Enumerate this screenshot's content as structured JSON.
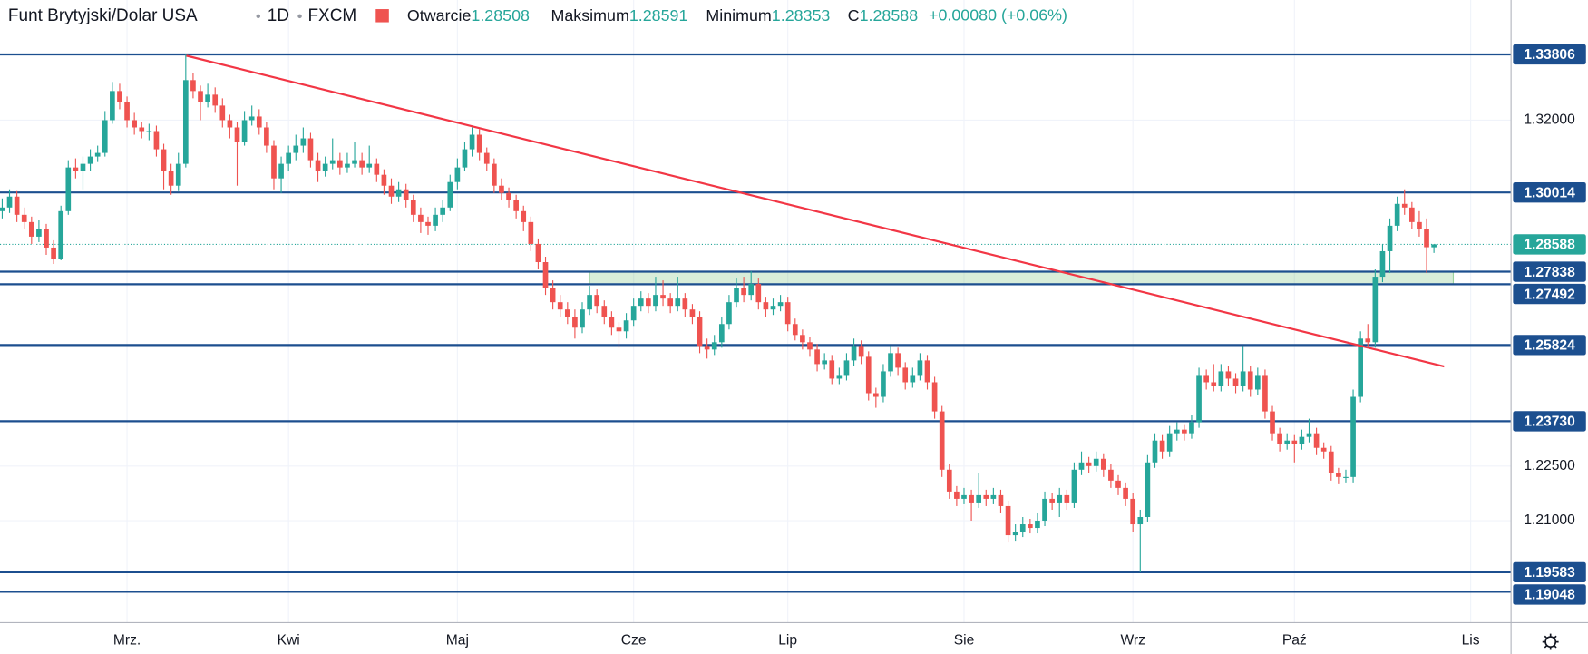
{
  "chart_data": {
    "type": "candlestick",
    "title": "Funt Brytyjski/Dolar USA",
    "interval": "1D",
    "source": "FXCM",
    "ohlc_labels": [
      "Otwarcie",
      "Maksimum",
      "Minimum",
      "C"
    ],
    "change": "+0.00080 (+0.06%)",
    "up_color": "#26a69a",
    "down_color": "#ef5350",
    "ohlc": [
      [
        1.295,
        1.2985,
        1.293,
        1.296
      ],
      [
        1.296,
        1.301,
        1.2945,
        1.299
      ],
      [
        1.299,
        1.3005,
        1.292,
        1.294
      ],
      [
        1.294,
        1.296,
        1.29,
        1.292
      ],
      [
        1.292,
        1.2935,
        1.286,
        1.288
      ],
      [
        1.288,
        1.2925,
        1.2865,
        1.29
      ],
      [
        1.29,
        1.2915,
        1.283,
        1.285
      ],
      [
        1.285,
        1.287,
        1.2805,
        1.282
      ],
      [
        1.282,
        1.2965,
        1.2815,
        1.295
      ],
      [
        1.295,
        1.309,
        1.294,
        1.307
      ],
      [
        1.307,
        1.3095,
        1.304,
        1.306
      ],
      [
        1.306,
        1.31,
        1.301,
        1.308
      ],
      [
        1.308,
        1.312,
        1.306,
        1.31
      ],
      [
        1.31,
        1.313,
        1.3085,
        1.311
      ],
      [
        1.311,
        1.3225,
        1.31,
        1.32
      ],
      [
        1.32,
        1.3305,
        1.319,
        1.328
      ],
      [
        1.328,
        1.33,
        1.323,
        1.325
      ],
      [
        1.325,
        1.3265,
        1.318,
        1.32
      ],
      [
        1.32,
        1.322,
        1.316,
        1.318
      ],
      [
        1.318,
        1.3195,
        1.315,
        1.317
      ],
      [
        1.317,
        1.319,
        1.3145,
        1.317
      ],
      [
        1.317,
        1.3185,
        1.31,
        1.312
      ],
      [
        1.312,
        1.3135,
        1.301,
        1.306
      ],
      [
        1.306,
        1.308,
        1.2995,
        1.302
      ],
      [
        1.302,
        1.311,
        1.3005,
        1.308
      ],
      [
        1.308,
        1.338,
        1.307,
        1.331
      ],
      [
        1.331,
        1.333,
        1.326,
        1.328
      ],
      [
        1.328,
        1.3295,
        1.32,
        1.325
      ],
      [
        1.325,
        1.33,
        1.3235,
        1.327
      ],
      [
        1.327,
        1.329,
        1.322,
        1.324
      ],
      [
        1.324,
        1.326,
        1.318,
        1.32
      ],
      [
        1.32,
        1.3215,
        1.315,
        1.318
      ],
      [
        1.318,
        1.3195,
        1.302,
        1.314
      ],
      [
        1.314,
        1.3225,
        1.313,
        1.32
      ],
      [
        1.32,
        1.324,
        1.3185,
        1.321
      ],
      [
        1.321,
        1.323,
        1.316,
        1.318
      ],
      [
        1.318,
        1.3195,
        1.311,
        1.313
      ],
      [
        1.313,
        1.3145,
        1.301,
        1.304
      ],
      [
        1.304,
        1.31,
        1.3,
        1.308
      ],
      [
        1.308,
        1.313,
        1.306,
        1.311
      ],
      [
        1.311,
        1.316,
        1.309,
        1.313
      ],
      [
        1.313,
        1.318,
        1.311,
        1.315
      ],
      [
        1.315,
        1.3165,
        1.307,
        1.309
      ],
      [
        1.309,
        1.311,
        1.303,
        1.306
      ],
      [
        1.306,
        1.31,
        1.3045,
        1.308
      ],
      [
        1.308,
        1.315,
        1.3065,
        1.309
      ],
      [
        1.309,
        1.311,
        1.305,
        1.307
      ],
      [
        1.307,
        1.311,
        1.3055,
        1.308
      ],
      [
        1.308,
        1.314,
        1.307,
        1.309
      ],
      [
        1.309,
        1.311,
        1.305,
        1.307
      ],
      [
        1.307,
        1.313,
        1.3055,
        1.308
      ],
      [
        1.308,
        1.3095,
        1.303,
        1.305
      ],
      [
        1.305,
        1.3065,
        1.2995,
        1.302
      ],
      [
        1.302,
        1.304,
        1.297,
        1.299
      ],
      [
        1.299,
        1.303,
        1.2975,
        1.301
      ],
      [
        1.301,
        1.3025,
        1.296,
        1.298
      ],
      [
        1.298,
        1.2995,
        1.292,
        1.294
      ],
      [
        1.294,
        1.296,
        1.289,
        1.292
      ],
      [
        1.292,
        1.2935,
        1.2885,
        1.291
      ],
      [
        1.291,
        1.296,
        1.2895,
        1.294
      ],
      [
        1.294,
        1.298,
        1.292,
        1.296
      ],
      [
        1.296,
        1.305,
        1.295,
        1.303
      ],
      [
        1.303,
        1.3095,
        1.301,
        1.307
      ],
      [
        1.307,
        1.314,
        1.306,
        1.312
      ],
      [
        1.312,
        1.318,
        1.31,
        1.316
      ],
      [
        1.316,
        1.3175,
        1.309,
        1.311
      ],
      [
        1.311,
        1.3125,
        1.306,
        1.308
      ],
      [
        1.308,
        1.3095,
        1.3,
        1.302
      ],
      [
        1.302,
        1.304,
        1.298,
        1.3
      ],
      [
        1.3,
        1.3015,
        1.296,
        1.298
      ],
      [
        1.298,
        1.2995,
        1.293,
        1.295
      ],
      [
        1.295,
        1.2965,
        1.2895,
        1.292
      ],
      [
        1.292,
        1.2935,
        1.284,
        1.286
      ],
      [
        1.286,
        1.2875,
        1.279,
        1.281
      ],
      [
        1.281,
        1.2825,
        1.272,
        1.274
      ],
      [
        1.274,
        1.276,
        1.268,
        1.27
      ],
      [
        1.27,
        1.272,
        1.266,
        1.268
      ],
      [
        1.268,
        1.27,
        1.264,
        1.266
      ],
      [
        1.266,
        1.268,
        1.26,
        1.263
      ],
      [
        1.263,
        1.27,
        1.2615,
        1.268
      ],
      [
        1.268,
        1.2745,
        1.2665,
        1.272
      ],
      [
        1.272,
        1.2735,
        1.267,
        1.269
      ],
      [
        1.269,
        1.2705,
        1.264,
        1.266
      ],
      [
        1.266,
        1.2675,
        1.261,
        1.263
      ],
      [
        1.263,
        1.2645,
        1.2575,
        1.262
      ],
      [
        1.262,
        1.267,
        1.26,
        1.265
      ],
      [
        1.265,
        1.271,
        1.2635,
        1.269
      ],
      [
        1.269,
        1.273,
        1.2675,
        1.271
      ],
      [
        1.271,
        1.2725,
        1.267,
        1.269
      ],
      [
        1.269,
        1.277,
        1.2675,
        1.272
      ],
      [
        1.272,
        1.276,
        1.269,
        1.271
      ],
      [
        1.271,
        1.2725,
        1.267,
        1.269
      ],
      [
        1.269,
        1.277,
        1.2675,
        1.271
      ],
      [
        1.271,
        1.2725,
        1.266,
        1.268
      ],
      [
        1.268,
        1.2695,
        1.264,
        1.266
      ],
      [
        1.266,
        1.2675,
        1.256,
        1.258
      ],
      [
        1.258,
        1.26,
        1.2545,
        1.257
      ],
      [
        1.257,
        1.261,
        1.2555,
        1.259
      ],
      [
        1.259,
        1.266,
        1.2575,
        1.264
      ],
      [
        1.264,
        1.272,
        1.2625,
        1.27
      ],
      [
        1.27,
        1.2765,
        1.2685,
        1.274
      ],
      [
        1.274,
        1.277,
        1.27,
        1.272
      ],
      [
        1.272,
        1.2785,
        1.2705,
        1.275
      ],
      [
        1.275,
        1.2765,
        1.268,
        1.27
      ],
      [
        1.27,
        1.2715,
        1.266,
        1.268
      ],
      [
        1.268,
        1.271,
        1.2665,
        1.269
      ],
      [
        1.269,
        1.272,
        1.2675,
        1.27
      ],
      [
        1.27,
        1.2715,
        1.262,
        1.264
      ],
      [
        1.264,
        1.2655,
        1.2595,
        1.261
      ],
      [
        1.261,
        1.2625,
        1.257,
        1.259
      ],
      [
        1.259,
        1.2605,
        1.255,
        1.257
      ],
      [
        1.257,
        1.2585,
        1.251,
        1.253
      ],
      [
        1.253,
        1.256,
        1.2515,
        1.254
      ],
      [
        1.254,
        1.2555,
        1.2475,
        1.249
      ],
      [
        1.249,
        1.252,
        1.2475,
        1.25
      ],
      [
        1.25,
        1.256,
        1.2485,
        1.254
      ],
      [
        1.254,
        1.26,
        1.2525,
        1.258
      ],
      [
        1.258,
        1.2595,
        1.253,
        1.255
      ],
      [
        1.255,
        1.2565,
        1.243,
        1.245
      ],
      [
        1.245,
        1.2465,
        1.241,
        1.244
      ],
      [
        1.244,
        1.253,
        1.2425,
        1.251
      ],
      [
        1.251,
        1.258,
        1.2495,
        1.256
      ],
      [
        1.256,
        1.2575,
        1.25,
        1.252
      ],
      [
        1.252,
        1.2535,
        1.246,
        1.248
      ],
      [
        1.248,
        1.252,
        1.2465,
        1.25
      ],
      [
        1.25,
        1.256,
        1.2485,
        1.254
      ],
      [
        1.254,
        1.2555,
        1.246,
        1.248
      ],
      [
        1.248,
        1.2495,
        1.238,
        1.24
      ],
      [
        1.24,
        1.2415,
        1.222,
        1.224
      ],
      [
        1.224,
        1.2255,
        1.216,
        1.218
      ],
      [
        1.218,
        1.2195,
        1.214,
        1.216
      ],
      [
        1.216,
        1.219,
        1.2145,
        1.217
      ],
      [
        1.217,
        1.2185,
        1.21,
        1.215
      ],
      [
        1.215,
        1.223,
        1.2135,
        1.217
      ],
      [
        1.217,
        1.2185,
        1.214,
        1.216
      ],
      [
        1.216,
        1.219,
        1.2145,
        1.217
      ],
      [
        1.217,
        1.2185,
        1.212,
        1.214
      ],
      [
        1.214,
        1.2155,
        1.204,
        1.206
      ],
      [
        1.206,
        1.209,
        1.2045,
        1.207
      ],
      [
        1.207,
        1.211,
        1.2055,
        1.209
      ],
      [
        1.209,
        1.2105,
        1.2065,
        1.208
      ],
      [
        1.208,
        1.212,
        1.2065,
        1.21
      ],
      [
        1.21,
        1.218,
        1.2085,
        1.216
      ],
      [
        1.216,
        1.2175,
        1.213,
        1.215
      ],
      [
        1.215,
        1.219,
        1.211,
        1.217
      ],
      [
        1.217,
        1.2185,
        1.213,
        1.215
      ],
      [
        1.215,
        1.226,
        1.2135,
        1.224
      ],
      [
        1.224,
        1.229,
        1.2225,
        1.226
      ],
      [
        1.226,
        1.2275,
        1.223,
        1.225
      ],
      [
        1.225,
        1.229,
        1.2235,
        1.227
      ],
      [
        1.227,
        1.2285,
        1.222,
        1.224
      ],
      [
        1.224,
        1.2255,
        1.219,
        1.221
      ],
      [
        1.221,
        1.2225,
        1.217,
        1.219
      ],
      [
        1.219,
        1.2205,
        1.214,
        1.216
      ],
      [
        1.216,
        1.2175,
        1.207,
        1.209
      ],
      [
        1.209,
        1.213,
        1.1958,
        1.211
      ],
      [
        1.211,
        1.228,
        1.2095,
        1.226
      ],
      [
        1.226,
        1.234,
        1.2245,
        1.232
      ],
      [
        1.232,
        1.2335,
        1.227,
        1.229
      ],
      [
        1.229,
        1.236,
        1.2275,
        1.234
      ],
      [
        1.234,
        1.237,
        1.232,
        1.235
      ],
      [
        1.235,
        1.2365,
        1.232,
        1.234
      ],
      [
        1.234,
        1.239,
        1.2325,
        1.237
      ],
      [
        1.237,
        1.252,
        1.2355,
        1.25
      ],
      [
        1.25,
        1.2515,
        1.246,
        1.248
      ],
      [
        1.248,
        1.253,
        1.2455,
        1.247
      ],
      [
        1.247,
        1.253,
        1.2455,
        1.251
      ],
      [
        1.251,
        1.2525,
        1.247,
        1.249
      ],
      [
        1.249,
        1.2505,
        1.245,
        1.247
      ],
      [
        1.247,
        1.258,
        1.2455,
        1.251
      ],
      [
        1.251,
        1.2525,
        1.244,
        1.246
      ],
      [
        1.246,
        1.252,
        1.2445,
        1.25
      ],
      [
        1.25,
        1.2515,
        1.238,
        1.24
      ],
      [
        1.24,
        1.2415,
        1.232,
        1.234
      ],
      [
        1.234,
        1.2355,
        1.229,
        1.231
      ],
      [
        1.231,
        1.234,
        1.2295,
        1.232
      ],
      [
        1.232,
        1.2335,
        1.226,
        1.231
      ],
      [
        1.231,
        1.235,
        1.2295,
        1.233
      ],
      [
        1.233,
        1.238,
        1.2315,
        1.234
      ],
      [
        1.234,
        1.2355,
        1.228,
        1.23
      ],
      [
        1.23,
        1.2315,
        1.227,
        1.229
      ],
      [
        1.229,
        1.2305,
        1.221,
        1.223
      ],
      [
        1.223,
        1.2245,
        1.22,
        1.222
      ],
      [
        1.222,
        1.224,
        1.2205,
        1.222
      ],
      [
        1.222,
        1.246,
        1.2205,
        1.244
      ],
      [
        1.244,
        1.262,
        1.2425,
        1.26
      ],
      [
        1.26,
        1.264,
        1.2575,
        1.259
      ],
      [
        1.259,
        1.279,
        1.2575,
        1.277
      ],
      [
        1.277,
        1.286,
        1.2755,
        1.284
      ],
      [
        1.284,
        1.293,
        1.278,
        1.291
      ],
      [
        1.291,
        1.299,
        1.2895,
        1.297
      ],
      [
        1.297,
        1.301,
        1.294,
        1.296
      ],
      [
        1.296,
        1.2975,
        1.29,
        1.292
      ],
      [
        1.292,
        1.295,
        1.288,
        1.29
      ],
      [
        1.29,
        1.293,
        1.278,
        1.2851
      ],
      [
        1.28508,
        1.28591,
        1.28353,
        1.28588
      ]
    ],
    "xlim": [
      -0.3,
      205.5
    ],
    "xticks": [
      {
        "value": 17,
        "label": "Mrz."
      },
      {
        "value": 39,
        "label": "Kwi"
      },
      {
        "value": 62,
        "label": "Maj"
      },
      {
        "value": 86,
        "label": "Cze"
      },
      {
        "value": 107,
        "label": "Lip"
      },
      {
        "value": 131,
        "label": "Sie"
      },
      {
        "value": 154,
        "label": "Wrz"
      },
      {
        "value": 176,
        "label": "Paź"
      },
      {
        "value": 200,
        "label": "Lis"
      }
    ],
    "ylim": [
      1.182,
      1.353
    ],
    "yticks": [
      {
        "value": 1.32,
        "label": "1.32000"
      },
      {
        "value": 1.225,
        "label": "1.22500"
      },
      {
        "value": 1.21,
        "label": "1.21000"
      }
    ],
    "grid": true,
    "levels": [
      1.33806,
      1.30014,
      1.27838,
      1.27492,
      1.25824,
      {
        "value": 1.2373,
        "label": "1.23730"
      },
      1.19583,
      1.19048
    ],
    "level_color": "#1c4f8f",
    "zone_color": "#4caf50"
  }
}
